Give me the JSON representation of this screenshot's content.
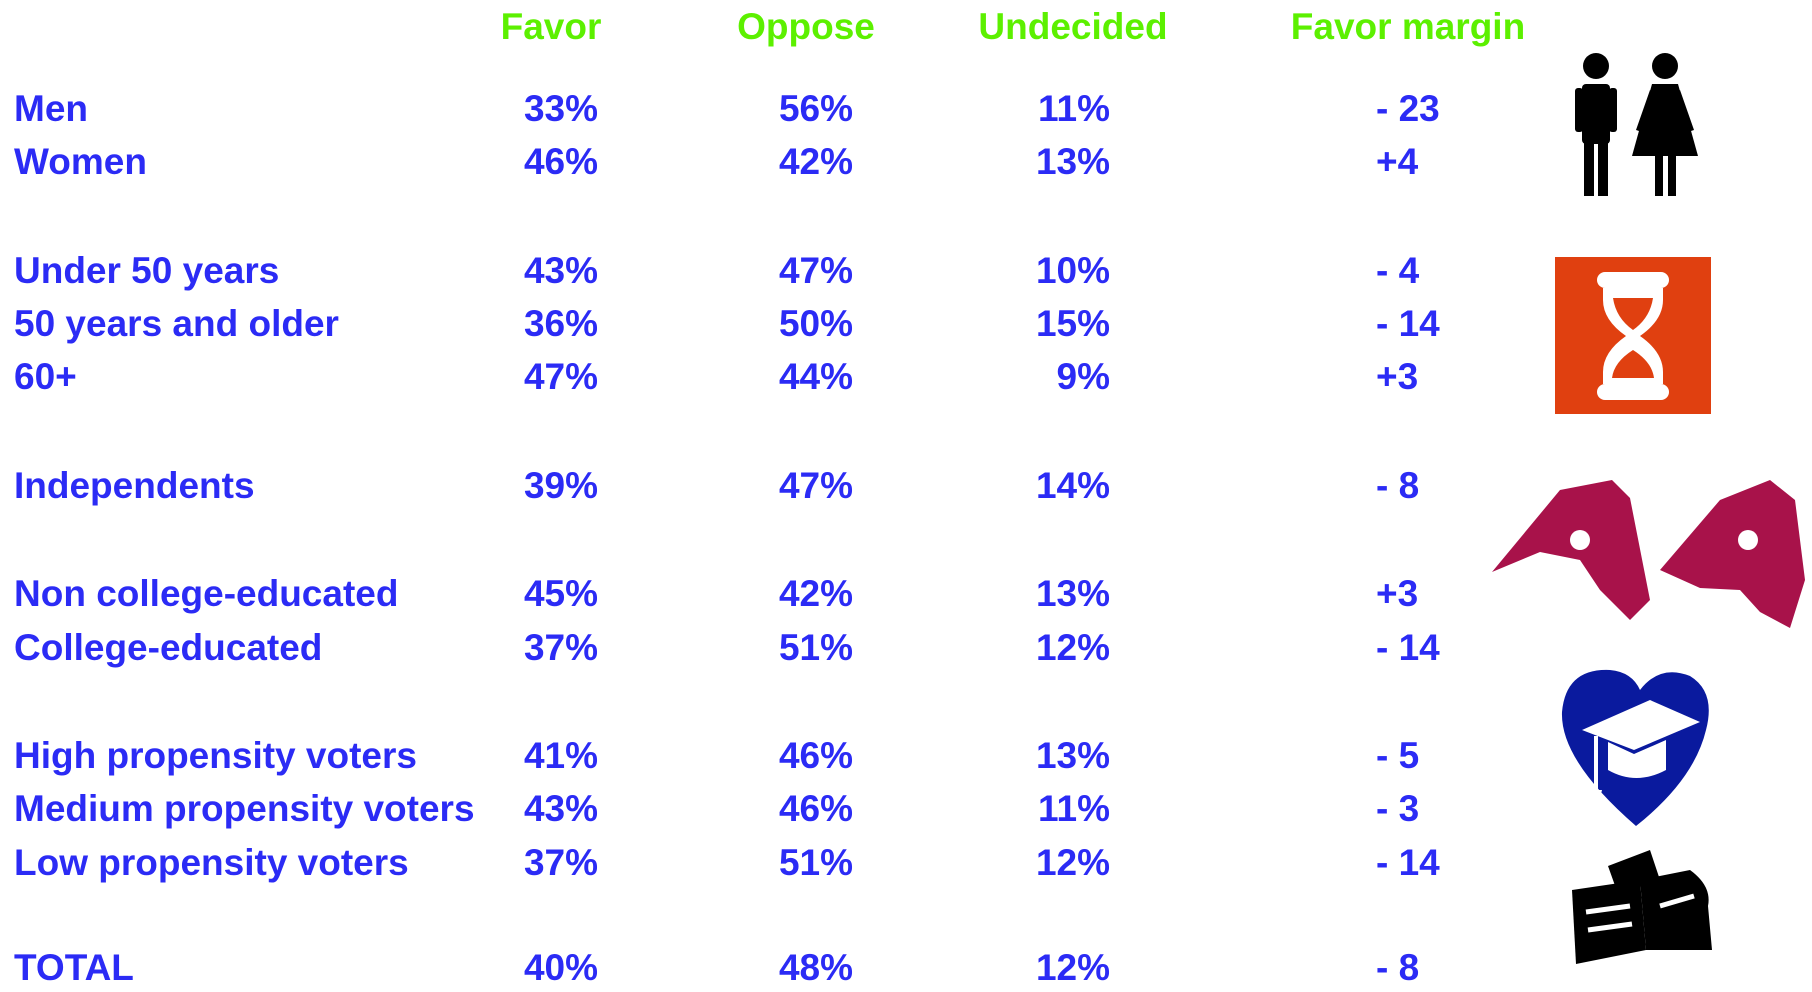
{
  "table": {
    "columns": [
      "Favor",
      "Oppose",
      "Undecided",
      "Favor margin"
    ],
    "rows": [
      [
        "Men",
        "33%",
        "56%",
        "11%",
        "- 23"
      ],
      [
        "Women",
        "46%",
        "42%",
        "13%",
        "+4"
      ],
      [
        "Under 50 years",
        "43%",
        "47%",
        "10%",
        "- 4"
      ],
      [
        "50 years and older",
        "36%",
        "50%",
        "15%",
        "- 14"
      ],
      [
        "60+",
        "47%",
        "44%",
        "9%",
        "+3"
      ],
      [
        "Independents",
        "39%",
        "47%",
        "14%",
        "- 8"
      ],
      [
        "Non college-educated",
        "45%",
        "42%",
        "13%",
        "+3"
      ],
      [
        "College-educated",
        "37%",
        "51%",
        "12%",
        "- 14"
      ],
      [
        "High propensity voters",
        "41%",
        "46%",
        "13%",
        "- 5"
      ],
      [
        "Medium propensity voters",
        "43%",
        "46%",
        "11%",
        "- 3"
      ],
      [
        "Low propensity voters",
        "37%",
        "51%",
        "12%",
        "- 14"
      ],
      [
        "TOTAL",
        "40%",
        "48%",
        "12%",
        "- 8"
      ]
    ]
  }
}
